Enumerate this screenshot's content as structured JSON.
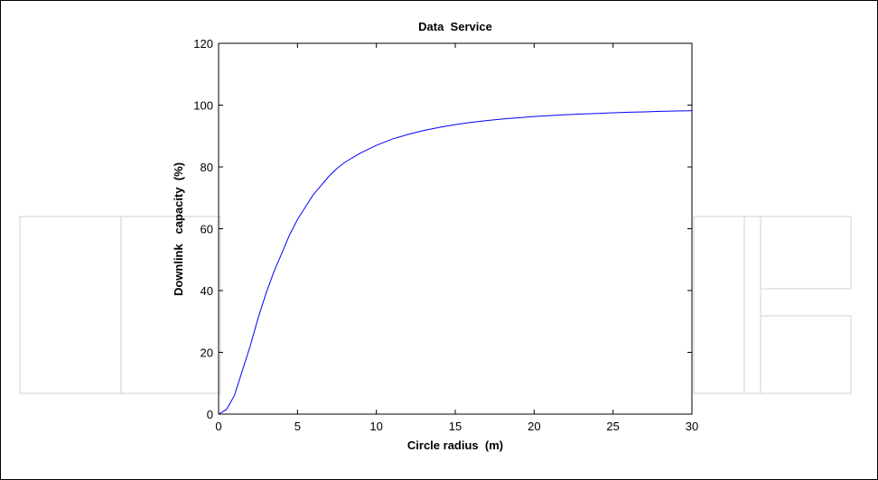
{
  "chart_data": {
    "type": "line",
    "title": "Data  Service",
    "xlabel": "Circle radius  (m)",
    "ylabel": "Downlink   capacity  (%)",
    "xlim": [
      0,
      30
    ],
    "ylim": [
      0,
      120
    ],
    "xticks": [
      0,
      5,
      10,
      15,
      20,
      25,
      30
    ],
    "yticks": [
      0,
      20,
      40,
      60,
      80,
      100,
      120
    ],
    "grid": false,
    "line_color": "#0000ff",
    "series": [
      {
        "x": [
          0,
          0.5,
          1,
          1.5,
          2,
          2.5,
          3,
          3.5,
          4,
          4.5,
          5,
          5.5,
          6,
          6.5,
          7,
          7.5,
          8,
          9,
          10,
          11,
          12,
          13,
          14,
          15,
          16,
          17,
          18,
          19,
          20,
          21,
          22,
          23,
          24,
          25,
          26,
          27,
          28,
          29,
          30
        ],
        "y": [
          0,
          1.5,
          6,
          14,
          22,
          31,
          39,
          46,
          52,
          58,
          63,
          67,
          71,
          74,
          77,
          79.5,
          81.5,
          84.5,
          87,
          89,
          90.5,
          91.8,
          92.8,
          93.7,
          94.4,
          95,
          95.5,
          95.9,
          96.3,
          96.6,
          96.9,
          97.1,
          97.3,
          97.5,
          97.7,
          97.8,
          98,
          98.1,
          98.2
        ]
      }
    ]
  }
}
